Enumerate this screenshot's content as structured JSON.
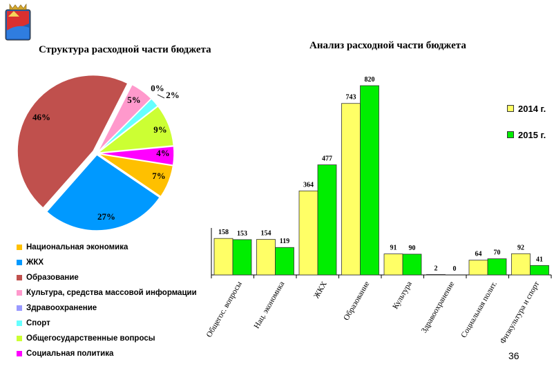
{
  "left_title": "Структура расходной части бюджета",
  "right_title": "Анализ расходной части бюджета",
  "page_number": "36",
  "chart_data": [
    {
      "type": "pie",
      "title": "Структура расходной части бюджета",
      "slices": [
        {
          "name": "Национальная экономика",
          "value": 7,
          "label": "7%",
          "color": "#ffc000"
        },
        {
          "name": "ЖКХ",
          "value": 27,
          "label": "27%",
          "color": "#0099ff"
        },
        {
          "name": "Образование",
          "value": 46,
          "label": "46%",
          "color": "#c0504d"
        },
        {
          "name": "Культура, средства массовой информации",
          "value": 5,
          "label": "5%",
          "color": "#ff99cc"
        },
        {
          "name": "Здравоохранение",
          "value": 0,
          "label": "0%",
          "color": "#9999ff"
        },
        {
          "name": "Спорт",
          "value": 2,
          "label": "2%",
          "color": "#66ffff"
        },
        {
          "name": "Общегосударственные вопросы",
          "value": 9,
          "label": "9%",
          "color": "#ccff33"
        },
        {
          "name": "Социальная политика",
          "value": 4,
          "label": "4%",
          "color": "#ff00ff"
        }
      ],
      "legend_position": "bottom"
    },
    {
      "type": "bar",
      "title": "Анализ расходной части бюджета",
      "categories": [
        "Общегос. вопросы",
        "Нац. экономика",
        "ЖКХ",
        "Образование",
        "Культура",
        "Здравоохранение",
        "Социальная полит.",
        "Физкультура и спорт"
      ],
      "series": [
        {
          "name": "2014 г.",
          "values": [
            158,
            154,
            364,
            743,
            91,
            2,
            64,
            92
          ],
          "color": "#ffff66"
        },
        {
          "name": "2015 г.",
          "values": [
            153,
            119,
            477,
            820,
            90,
            0,
            70,
            41
          ],
          "color": "#00ee00"
        }
      ],
      "ylim": [
        0,
        820
      ],
      "grid": false,
      "legend_position": "top-right"
    }
  ]
}
